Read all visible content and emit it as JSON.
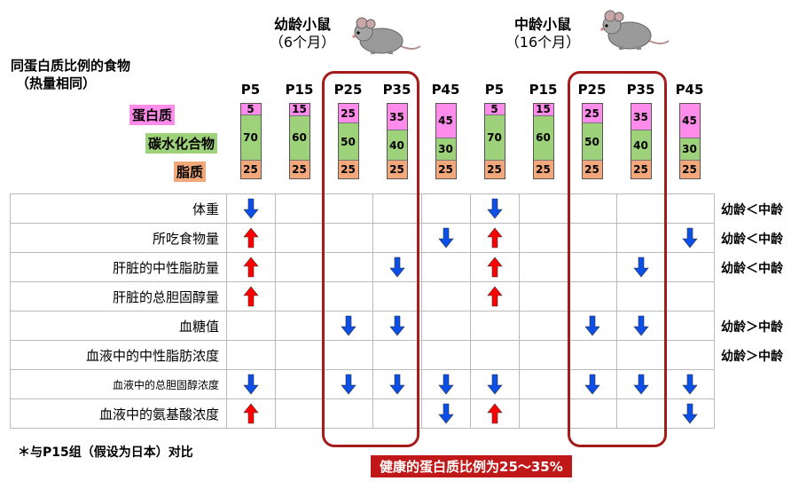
{
  "header": {
    "food_label_line1": "同蛋白质比例的食物",
    "food_label_line2": "（热量相同）",
    "young_group": {
      "name": "幼龄小鼠",
      "age": "（6个月）"
    },
    "middle_group": {
      "name": "中龄小鼠",
      "age": "（16个月）"
    }
  },
  "legend": {
    "protein": "蛋白质",
    "carb": "碳水化合物",
    "fat": "脂质"
  },
  "colors": {
    "protein": "#ff8bea",
    "carb": "#9ed27a",
    "fat": "#f2a87a",
    "up_arrow": "#ff0000",
    "down_arrow": "#0b4fe8",
    "highlight_box": "#a51c1c",
    "banner": "#c01818"
  },
  "icons": {
    "mouse": "mouse-icon",
    "up": "up-arrow-icon",
    "down": "down-arrow-icon"
  },
  "columns": [
    {
      "label": "P5",
      "protein": 5,
      "carb": 70,
      "fat": 25
    },
    {
      "label": "P15",
      "protein": 15,
      "carb": 60,
      "fat": 25
    },
    {
      "label": "P25",
      "protein": 25,
      "carb": 50,
      "fat": 25
    },
    {
      "label": "P35",
      "protein": 35,
      "carb": 40,
      "fat": 25
    },
    {
      "label": "P45",
      "protein": 45,
      "carb": 30,
      "fat": 25
    },
    {
      "label": "P5",
      "protein": 5,
      "carb": 70,
      "fat": 25
    },
    {
      "label": "P15",
      "protein": 15,
      "carb": 60,
      "fat": 25
    },
    {
      "label": "P25",
      "protein": 25,
      "carb": 50,
      "fat": 25
    },
    {
      "label": "P35",
      "protein": 35,
      "carb": 40,
      "fat": 25
    },
    {
      "label": "P45",
      "protein": 45,
      "carb": 30,
      "fat": 25
    }
  ],
  "rows": [
    {
      "label": "体重",
      "small": false,
      "cells": [
        "down",
        "",
        "",
        "",
        "",
        "down",
        "",
        "",
        "",
        ""
      ],
      "comparison": "幼龄＜中龄"
    },
    {
      "label": "所吃食物量",
      "small": false,
      "cells": [
        "up",
        "",
        "",
        "",
        "down",
        "up",
        "",
        "",
        "",
        "down"
      ],
      "comparison": "幼龄＜中龄"
    },
    {
      "label": "肝脏的中性脂肪量",
      "small": false,
      "cells": [
        "up",
        "",
        "",
        "down",
        "",
        "up",
        "",
        "",
        "down",
        ""
      ],
      "comparison": "幼龄＜中龄"
    },
    {
      "label": "肝脏的总胆固醇量",
      "small": false,
      "cells": [
        "up",
        "",
        "",
        "",
        "",
        "up",
        "",
        "",
        "",
        ""
      ],
      "comparison": ""
    },
    {
      "label": "血糖值",
      "small": false,
      "cells": [
        "",
        "",
        "down",
        "down",
        "",
        "",
        "",
        "down",
        "down",
        ""
      ],
      "comparison": "幼龄＞中龄"
    },
    {
      "label": "血液中的中性脂肪浓度",
      "small": false,
      "cells": [
        "",
        "",
        "",
        "",
        "",
        "",
        "",
        "",
        "",
        ""
      ],
      "comparison": "幼龄＞中龄"
    },
    {
      "label": "血液中的总胆固醇浓度",
      "small": true,
      "cells": [
        "down",
        "",
        "down",
        "down",
        "down",
        "down",
        "",
        "down",
        "down",
        "down"
      ],
      "comparison": ""
    },
    {
      "label": "血液中的氨基酸浓度",
      "small": false,
      "cells": [
        "up",
        "",
        "",
        "",
        "down",
        "up",
        "",
        "",
        "",
        "down"
      ],
      "comparison": ""
    }
  ],
  "footnote": "＊与P15组（假设为日本）对比",
  "banner": "健康的蛋白质比例为25～35%"
}
